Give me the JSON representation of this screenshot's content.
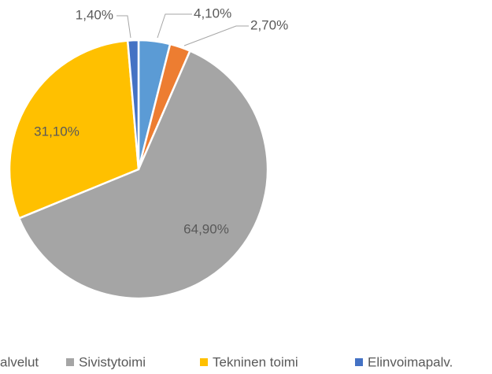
{
  "chart_data": {
    "type": "pie",
    "categories": [
      null,
      "alvelut",
      "Sivistytoimi",
      "Tekninen toimi",
      "Elinvoimapalv."
    ],
    "values": [
      4.1,
      2.7,
      64.9,
      31.1,
      1.4
    ],
    "value_labels": [
      "4,10%",
      "2,70%",
      "64,90%",
      "31,10%",
      "1,40%"
    ],
    "colors": [
      "#5b9bd5",
      "#ed7d31",
      "#a5a5a5",
      "#ffc000",
      "#4472c4"
    ],
    "legend": "bottom"
  }
}
